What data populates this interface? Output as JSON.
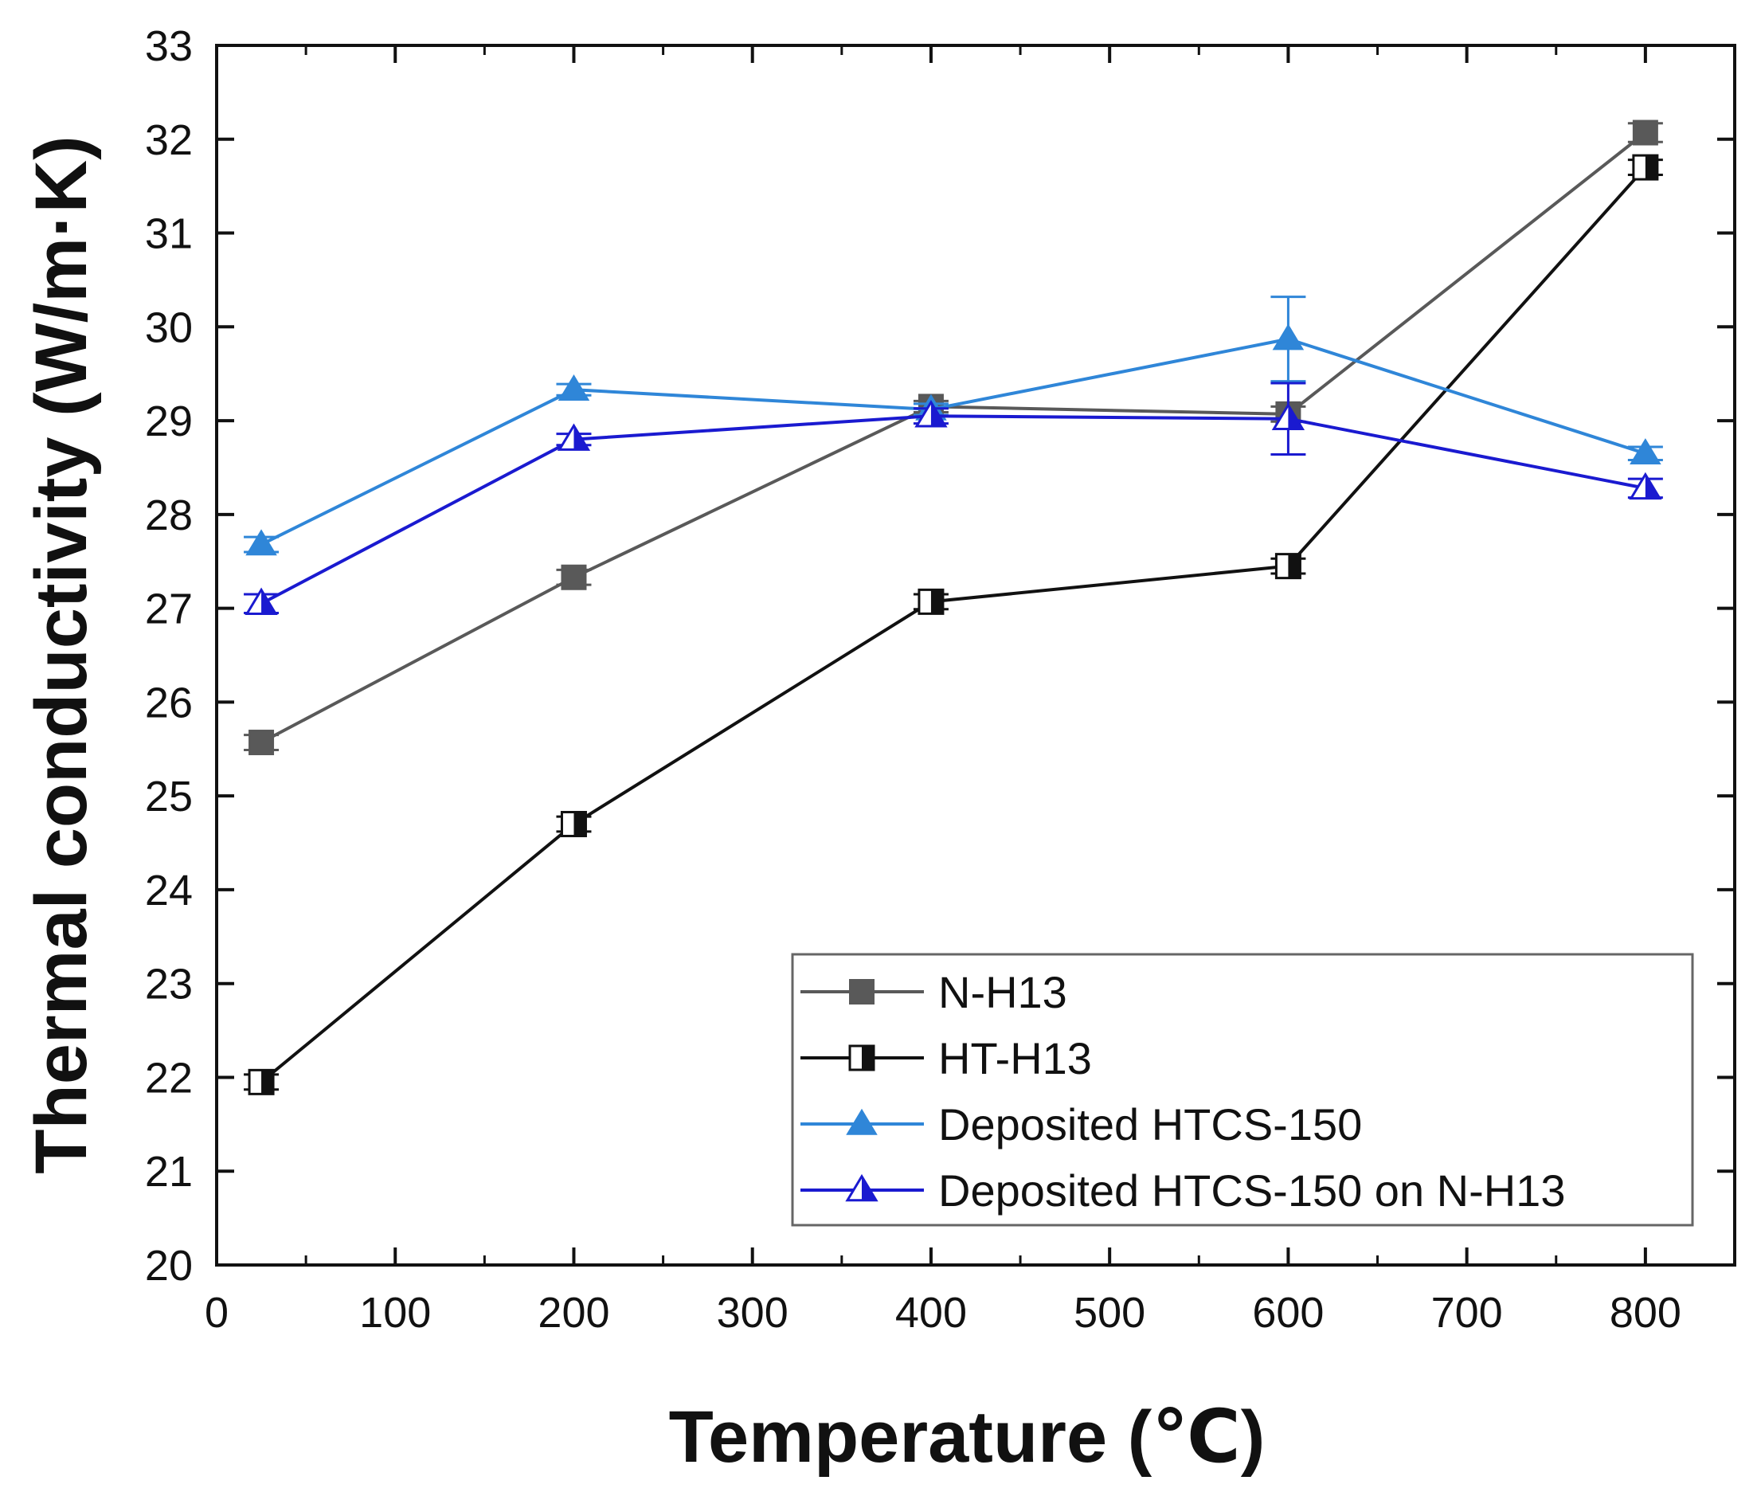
{
  "chart_data": {
    "type": "line",
    "title": "",
    "xlabel": "Temperature (℃)",
    "ylabel": "Thermal conductivity (W/m·K)",
    "xlim": [
      0,
      850
    ],
    "ylim": [
      20,
      33
    ],
    "xticks": [
      0,
      100,
      200,
      300,
      400,
      500,
      600,
      700,
      800
    ],
    "yticks": [
      20,
      21,
      22,
      23,
      24,
      25,
      26,
      27,
      28,
      29,
      30,
      31,
      32,
      33
    ],
    "grid": false,
    "legend_position": "bottom-right",
    "series": [
      {
        "name": "N-H13",
        "color": "#595959",
        "marker": "square-filled",
        "x": [
          25,
          200,
          400,
          600,
          800
        ],
        "y": [
          25.57,
          27.33,
          29.15,
          29.07,
          32.07
        ],
        "err": [
          0.08,
          0.08,
          0.06,
          0.08,
          0.1
        ]
      },
      {
        "name": "HT-H13",
        "color": "#111111",
        "marker": "square-half",
        "x": [
          25,
          200,
          400,
          600,
          800
        ],
        "y": [
          21.95,
          24.7,
          27.07,
          27.45,
          31.7
        ],
        "err": [
          0.08,
          0.08,
          0.08,
          0.08,
          0.08
        ]
      },
      {
        "name": "Deposited HTCS-150",
        "color": "#2f86d8",
        "marker": "triangle-filled",
        "x": [
          25,
          200,
          400,
          600,
          800
        ],
        "y": [
          27.68,
          29.33,
          29.12,
          29.87,
          28.65
        ],
        "err": [
          0.08,
          0.06,
          0.06,
          0.45,
          0.07
        ]
      },
      {
        "name": "Deposited HTCS-150 on N-H13",
        "color": "#1a1ad0",
        "marker": "triangle-half",
        "x": [
          25,
          200,
          400,
          600,
          800
        ],
        "y": [
          27.05,
          28.8,
          29.05,
          29.02,
          28.28
        ],
        "err": [
          0.1,
          0.06,
          0.08,
          0.38,
          0.1
        ]
      }
    ]
  }
}
